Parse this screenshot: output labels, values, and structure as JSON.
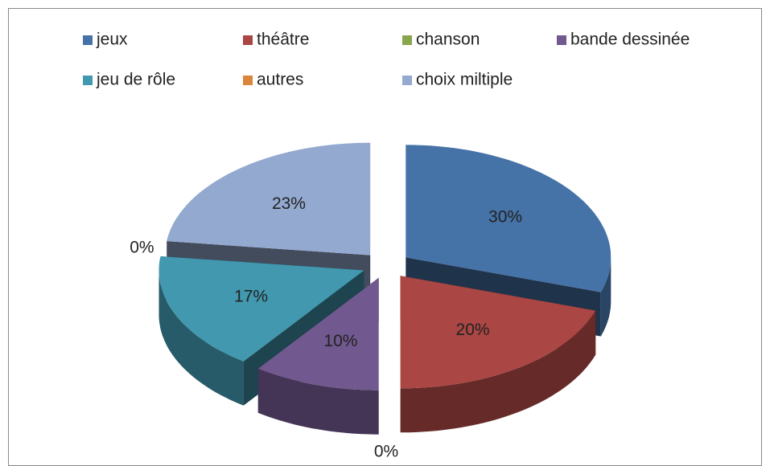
{
  "chart_data": {
    "type": "pie",
    "categories": [
      "jeux",
      "théâtre",
      "chanson",
      "bande dessinée",
      "jeu de rôle",
      "autres",
      "choix miltiple"
    ],
    "values": [
      30,
      20,
      0,
      10,
      17,
      0,
      23
    ],
    "value_labels": [
      "30%",
      "20%",
      "0%",
      "10%",
      "17%",
      "0%",
      "23%"
    ],
    "colors": [
      "#4572a7",
      "#aa4643",
      "#89a54e",
      "#71588f",
      "#4198af",
      "#db843d",
      "#93a9cf"
    ],
    "legend": "top"
  }
}
